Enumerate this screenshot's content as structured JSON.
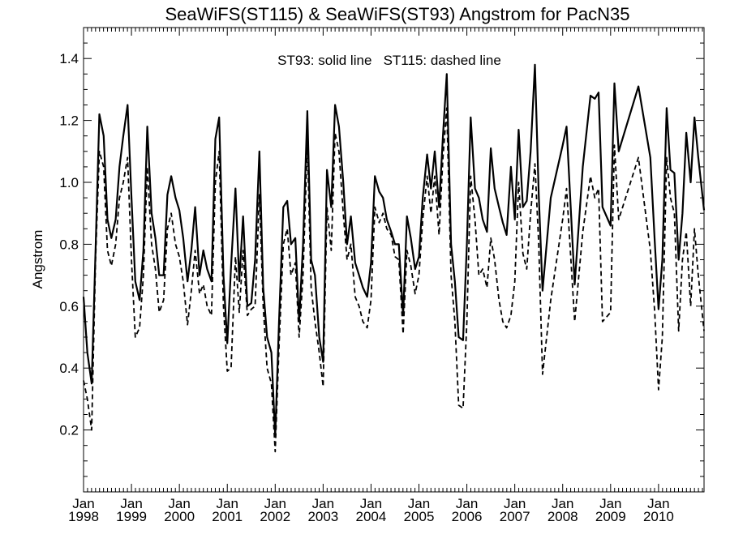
{
  "chart_data": {
    "type": "line",
    "title": "SeaWiFS(ST115) & SeaWiFS(ST93)  Angstrom for PacN35",
    "ylabel": "Angstrom",
    "xlabel": "",
    "annotation": "ST93: solid line   ST115: dashed line",
    "xlim": [
      1998.0,
      2010.95
    ],
    "ylim": [
      0.0,
      1.5
    ],
    "yticks": [
      0.2,
      0.4,
      0.6,
      0.8,
      1.0,
      1.2,
      1.4
    ],
    "ytick_labels": [
      "0.2",
      "0.4",
      "0.6",
      "0.8",
      "1.0",
      "1.2",
      "1.4"
    ],
    "xticks": [
      {
        "month": "Jan",
        "year": "1998",
        "x": 1998
      },
      {
        "month": "Jan",
        "year": "1999",
        "x": 1999
      },
      {
        "month": "Jan",
        "year": "2000",
        "x": 2000
      },
      {
        "month": "Jan",
        "year": "2001",
        "x": 2001
      },
      {
        "month": "Jan",
        "year": "2002",
        "x": 2002
      },
      {
        "month": "Jan",
        "year": "2003",
        "x": 2003
      },
      {
        "month": "Jan",
        "year": "2004",
        "x": 2004
      },
      {
        "month": "Jan",
        "year": "2005",
        "x": 2005
      },
      {
        "month": "Jan",
        "year": "2006",
        "x": 2006
      },
      {
        "month": "Jan",
        "year": "2007",
        "x": 2007
      },
      {
        "month": "Jan",
        "year": "2008",
        "x": 2008
      },
      {
        "month": "Jan",
        "year": "2009",
        "x": 2009
      },
      {
        "month": "Jan",
        "year": "2010",
        "x": 2010
      }
    ],
    "grid": false,
    "series": [
      {
        "name": "ST93",
        "style": "solid",
        "color": "#000000",
        "points": [
          [
            1998.0,
            0.63
          ],
          [
            1998.08,
            0.45
          ],
          [
            1998.17,
            0.35
          ],
          [
            1998.25,
            0.78
          ],
          [
            1998.33,
            1.22
          ],
          [
            1998.42,
            1.15
          ],
          [
            1998.5,
            0.88
          ],
          [
            1998.58,
            0.82
          ],
          [
            1998.67,
            0.88
          ],
          [
            1998.75,
            1.05
          ],
          [
            1998.83,
            1.15
          ],
          [
            1998.92,
            1.25
          ],
          [
            1999.0,
            0.95
          ],
          [
            1999.08,
            0.68
          ],
          [
            1999.17,
            0.62
          ],
          [
            1999.25,
            0.78
          ],
          [
            1999.33,
            1.18
          ],
          [
            1999.42,
            0.9
          ],
          [
            1999.5,
            0.82
          ],
          [
            1999.58,
            0.7
          ],
          [
            1999.67,
            0.7
          ],
          [
            1999.75,
            0.96
          ],
          [
            1999.83,
            1.02
          ],
          [
            1999.92,
            0.95
          ],
          [
            2000.0,
            0.91
          ],
          [
            2000.08,
            0.82
          ],
          [
            2000.17,
            0.68
          ],
          [
            2000.25,
            0.78
          ],
          [
            2000.33,
            0.92
          ],
          [
            2000.42,
            0.7
          ],
          [
            2000.5,
            0.78
          ],
          [
            2000.58,
            0.72
          ],
          [
            2000.67,
            0.68
          ],
          [
            2000.75,
            1.14
          ],
          [
            2000.83,
            1.21
          ],
          [
            2000.92,
            0.7
          ],
          [
            2001.0,
            0.48
          ],
          [
            2001.08,
            0.73
          ],
          [
            2001.17,
            0.98
          ],
          [
            2001.25,
            0.68
          ],
          [
            2001.33,
            0.89
          ],
          [
            2001.42,
            0.6
          ],
          [
            2001.5,
            0.61
          ],
          [
            2001.58,
            0.75
          ],
          [
            2001.67,
            1.1
          ],
          [
            2001.75,
            0.66
          ],
          [
            2001.83,
            0.5
          ],
          [
            2001.92,
            0.45
          ],
          [
            2002.0,
            0.18
          ],
          [
            2002.08,
            0.55
          ],
          [
            2002.17,
            0.92
          ],
          [
            2002.25,
            0.94
          ],
          [
            2002.33,
            0.8
          ],
          [
            2002.42,
            0.82
          ],
          [
            2002.5,
            0.55
          ],
          [
            2002.58,
            0.8
          ],
          [
            2002.67,
            1.23
          ],
          [
            2002.75,
            0.75
          ],
          [
            2002.83,
            0.7
          ],
          [
            2002.92,
            0.5
          ],
          [
            2003.0,
            0.42
          ],
          [
            2003.08,
            1.04
          ],
          [
            2003.17,
            0.92
          ],
          [
            2003.25,
            1.25
          ],
          [
            2003.33,
            1.18
          ],
          [
            2003.42,
            1.0
          ],
          [
            2003.5,
            0.8
          ],
          [
            2003.58,
            0.89
          ],
          [
            2003.67,
            0.74
          ],
          [
            2003.75,
            0.7
          ],
          [
            2003.83,
            0.66
          ],
          [
            2003.92,
            0.63
          ],
          [
            2004.0,
            0.74
          ],
          [
            2004.08,
            1.02
          ],
          [
            2004.17,
            0.97
          ],
          [
            2004.25,
            0.95
          ],
          [
            2004.33,
            0.88
          ],
          [
            2004.42,
            0.84
          ],
          [
            2004.5,
            0.8
          ],
          [
            2004.58,
            0.8
          ],
          [
            2004.67,
            0.57
          ],
          [
            2004.75,
            0.89
          ],
          [
            2004.83,
            0.82
          ],
          [
            2004.92,
            0.72
          ],
          [
            2005.0,
            0.76
          ],
          [
            2005.08,
            0.95
          ],
          [
            2005.17,
            1.09
          ],
          [
            2005.25,
            0.98
          ],
          [
            2005.33,
            1.1
          ],
          [
            2005.42,
            0.92
          ],
          [
            2005.5,
            1.15
          ],
          [
            2005.58,
            1.35
          ],
          [
            2005.67,
            0.8
          ],
          [
            2005.75,
            0.68
          ],
          [
            2005.83,
            0.5
          ],
          [
            2005.92,
            0.49
          ],
          [
            2006.0,
            0.8
          ],
          [
            2006.08,
            1.21
          ],
          [
            2006.17,
            0.98
          ],
          [
            2006.25,
            0.95
          ],
          [
            2006.33,
            0.88
          ],
          [
            2006.42,
            0.84
          ],
          [
            2006.5,
            1.11
          ],
          [
            2006.58,
            0.98
          ],
          [
            2006.67,
            0.92
          ],
          [
            2006.75,
            0.87
          ],
          [
            2006.83,
            0.83
          ],
          [
            2006.92,
            1.05
          ],
          [
            2007.0,
            0.88
          ],
          [
            2007.08,
            1.17
          ],
          [
            2007.17,
            0.92
          ],
          [
            2007.25,
            0.94
          ],
          [
            2007.33,
            1.1
          ],
          [
            2007.42,
            1.38
          ],
          [
            2007.5,
            0.96
          ],
          [
            2007.58,
            0.65
          ],
          [
            2007.75,
            0.95
          ],
          [
            2008.0,
            1.12
          ],
          [
            2008.08,
            1.18
          ],
          [
            2008.25,
            0.67
          ],
          [
            2008.42,
            1.05
          ],
          [
            2008.58,
            1.28
          ],
          [
            2008.67,
            1.27
          ],
          [
            2008.75,
            1.29
          ],
          [
            2008.83,
            0.92
          ],
          [
            2009.0,
            0.86
          ],
          [
            2009.08,
            1.32
          ],
          [
            2009.17,
            1.1
          ],
          [
            2009.58,
            1.31
          ],
          [
            2009.83,
            1.08
          ],
          [
            2009.92,
            0.81
          ],
          [
            2010.0,
            0.59
          ],
          [
            2010.08,
            0.75
          ],
          [
            2010.17,
            1.24
          ],
          [
            2010.25,
            1.04
          ],
          [
            2010.33,
            1.03
          ],
          [
            2010.42,
            0.75
          ],
          [
            2010.5,
            0.9
          ],
          [
            2010.58,
            1.16
          ],
          [
            2010.67,
            1.0
          ],
          [
            2010.75,
            1.21
          ],
          [
            2010.83,
            1.08
          ],
          [
            2010.95,
            0.91
          ]
        ]
      },
      {
        "name": "ST115",
        "style": "dashed",
        "color": "#000000",
        "points": [
          [
            1998.0,
            0.36
          ],
          [
            1998.08,
            0.3
          ],
          [
            1998.17,
            0.2
          ],
          [
            1998.25,
            0.75
          ],
          [
            1998.33,
            1.1
          ],
          [
            1998.42,
            1.05
          ],
          [
            1998.5,
            0.78
          ],
          [
            1998.58,
            0.73
          ],
          [
            1998.67,
            0.8
          ],
          [
            1998.75,
            0.95
          ],
          [
            1998.83,
            1.0
          ],
          [
            1998.92,
            1.08
          ],
          [
            1999.0,
            0.75
          ],
          [
            1999.08,
            0.5
          ],
          [
            1999.17,
            0.53
          ],
          [
            1999.25,
            0.7
          ],
          [
            1999.33,
            1.05
          ],
          [
            1999.42,
            0.8
          ],
          [
            1999.5,
            0.72
          ],
          [
            1999.58,
            0.58
          ],
          [
            1999.67,
            0.62
          ],
          [
            1999.75,
            0.85
          ],
          [
            1999.83,
            0.9
          ],
          [
            1999.92,
            0.8
          ],
          [
            2000.0,
            0.76
          ],
          [
            2000.08,
            0.68
          ],
          [
            2000.17,
            0.54
          ],
          [
            2000.25,
            0.65
          ],
          [
            2000.33,
            0.78
          ],
          [
            2000.42,
            0.64
          ],
          [
            2000.5,
            0.67
          ],
          [
            2000.58,
            0.6
          ],
          [
            2000.67,
            0.57
          ],
          [
            2000.75,
            1.0
          ],
          [
            2000.83,
            1.1
          ],
          [
            2000.92,
            0.6
          ],
          [
            2001.0,
            0.39
          ],
          [
            2001.08,
            0.4
          ],
          [
            2001.17,
            0.76
          ],
          [
            2001.25,
            0.58
          ],
          [
            2001.33,
            0.78
          ],
          [
            2001.42,
            0.57
          ],
          [
            2001.5,
            0.59
          ],
          [
            2001.58,
            0.6
          ],
          [
            2001.67,
            0.96
          ],
          [
            2001.75,
            0.6
          ],
          [
            2001.83,
            0.4
          ],
          [
            2001.92,
            0.35
          ],
          [
            2002.0,
            0.13
          ],
          [
            2002.08,
            0.47
          ],
          [
            2002.17,
            0.8
          ],
          [
            2002.25,
            0.85
          ],
          [
            2002.33,
            0.7
          ],
          [
            2002.42,
            0.74
          ],
          [
            2002.5,
            0.5
          ],
          [
            2002.58,
            0.7
          ],
          [
            2002.67,
            1.13
          ],
          [
            2002.75,
            0.66
          ],
          [
            2002.83,
            0.55
          ],
          [
            2002.92,
            0.45
          ],
          [
            2003.0,
            0.34
          ],
          [
            2003.08,
            0.92
          ],
          [
            2003.17,
            0.78
          ],
          [
            2003.25,
            1.16
          ],
          [
            2003.33,
            1.1
          ],
          [
            2003.42,
            0.9
          ],
          [
            2003.5,
            0.75
          ],
          [
            2003.58,
            0.8
          ],
          [
            2003.67,
            0.63
          ],
          [
            2003.75,
            0.6
          ],
          [
            2003.83,
            0.55
          ],
          [
            2003.92,
            0.53
          ],
          [
            2004.0,
            0.62
          ],
          [
            2004.08,
            0.92
          ],
          [
            2004.17,
            0.87
          ],
          [
            2004.25,
            0.9
          ],
          [
            2004.33,
            0.85
          ],
          [
            2004.42,
            0.83
          ],
          [
            2004.5,
            0.76
          ],
          [
            2004.58,
            0.75
          ],
          [
            2004.67,
            0.51
          ],
          [
            2004.75,
            0.78
          ],
          [
            2004.83,
            0.73
          ],
          [
            2004.92,
            0.64
          ],
          [
            2005.0,
            0.7
          ],
          [
            2005.08,
            0.88
          ],
          [
            2005.17,
            1.02
          ],
          [
            2005.25,
            0.9
          ],
          [
            2005.33,
            1.02
          ],
          [
            2005.42,
            0.83
          ],
          [
            2005.5,
            1.08
          ],
          [
            2005.58,
            1.24
          ],
          [
            2005.67,
            0.7
          ],
          [
            2005.75,
            0.55
          ],
          [
            2005.83,
            0.28
          ],
          [
            2005.92,
            0.27
          ],
          [
            2006.0,
            0.55
          ],
          [
            2006.08,
            1.02
          ],
          [
            2006.17,
            0.88
          ],
          [
            2006.25,
            0.7
          ],
          [
            2006.33,
            0.72
          ],
          [
            2006.42,
            0.66
          ],
          [
            2006.5,
            0.82
          ],
          [
            2006.58,
            0.75
          ],
          [
            2006.67,
            0.62
          ],
          [
            2006.75,
            0.55
          ],
          [
            2006.83,
            0.53
          ],
          [
            2006.92,
            0.57
          ],
          [
            2007.0,
            0.68
          ],
          [
            2007.08,
            1.0
          ],
          [
            2007.17,
            0.77
          ],
          [
            2007.25,
            0.72
          ],
          [
            2007.33,
            0.9
          ],
          [
            2007.42,
            1.06
          ],
          [
            2007.5,
            0.8
          ],
          [
            2007.58,
            0.38
          ],
          [
            2007.75,
            0.62
          ],
          [
            2008.0,
            0.88
          ],
          [
            2008.08,
            0.98
          ],
          [
            2008.25,
            0.55
          ],
          [
            2008.42,
            0.84
          ],
          [
            2008.58,
            1.02
          ],
          [
            2008.67,
            0.95
          ],
          [
            2008.75,
            0.98
          ],
          [
            2008.83,
            0.55
          ],
          [
            2009.0,
            0.58
          ],
          [
            2009.08,
            1.12
          ],
          [
            2009.17,
            0.88
          ],
          [
            2009.58,
            1.08
          ],
          [
            2009.83,
            0.78
          ],
          [
            2009.92,
            0.58
          ],
          [
            2010.0,
            0.33
          ],
          [
            2010.08,
            0.5
          ],
          [
            2010.17,
            1.08
          ],
          [
            2010.25,
            0.95
          ],
          [
            2010.33,
            0.9
          ],
          [
            2010.42,
            0.52
          ],
          [
            2010.5,
            0.75
          ],
          [
            2010.58,
            0.84
          ],
          [
            2010.67,
            0.6
          ],
          [
            2010.75,
            0.85
          ],
          [
            2010.83,
            0.7
          ],
          [
            2010.95,
            0.52
          ]
        ]
      }
    ]
  }
}
